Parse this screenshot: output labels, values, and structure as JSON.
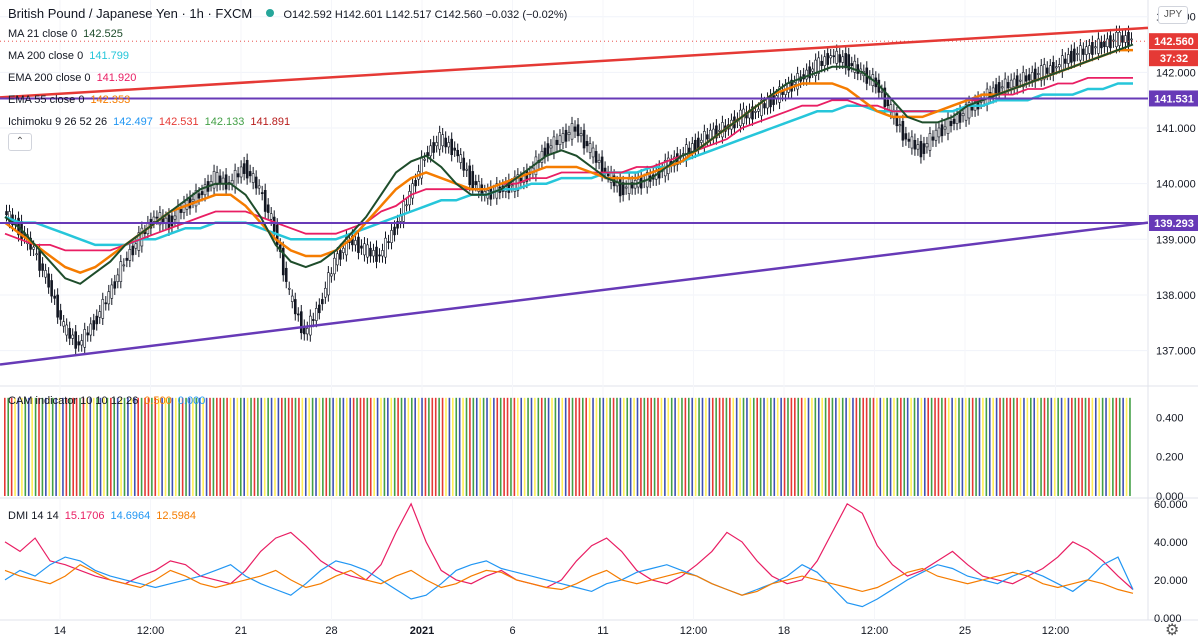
{
  "header": {
    "symbol": "British Pound / Japanese Yen · 1h · FXCM",
    "ohlc": "O142.592  H142.601  L142.517  C142.560  −0.032 (−0.02%)",
    "currency": "JPY"
  },
  "legend_items": [
    {
      "label": "MA 21 close 0",
      "value": "142.525",
      "color": "#1e4d2b"
    },
    {
      "label": "MA 200 close 0",
      "value": "141.799",
      "color": "#26c6da"
    },
    {
      "label": "EMA 200 close 0",
      "value": "141.920",
      "color": "#e91e63"
    },
    {
      "label": "EMA 55 close 0",
      "value": "142.353",
      "color": "#f57c00"
    }
  ],
  "ichimoku": {
    "label": "Ichimoku 9 26 52 26",
    "values": [
      "142.497",
      "142.531",
      "142.133",
      "141.891"
    ],
    "colors": [
      "#2196f3",
      "#e53935",
      "#43a047",
      "#b71c1c"
    ]
  },
  "cam": {
    "label": "CAM indicator 10 10 12 26",
    "values": [
      "0.500",
      "0.000"
    ]
  },
  "dmi": {
    "label": "DMI 14 14",
    "values": [
      "15.1706",
      "14.6964",
      "12.5984"
    ],
    "colors": [
      "#e91e63",
      "#2196f3",
      "#f57c00"
    ]
  },
  "price_badges": {
    "last": "142.560",
    "countdown": "37:32",
    "upper_h": "141.531",
    "lower_h": "139.293"
  },
  "colors": {
    "rsi_red": "#e53935",
    "purple": "#673ab7",
    "ma21": "#1e4d2b",
    "ma200": "#26c6da",
    "ema200": "#e91e63",
    "ema55": "#f57c00",
    "cam_red": "#e53935",
    "cam_blue": "#3f51b5",
    "cam_green": "#43a047",
    "cam_yellow": "#ffee58",
    "dmi_plus": "#e91e63",
    "dmi_minus": "#2196f3",
    "adx": "#f57c00"
  },
  "chart_data": {
    "type": "candlestick",
    "main": {
      "y_ticks": [
        "143.000",
        "142.000",
        "141.000",
        "140.000",
        "139.000",
        "138.000",
        "137.000"
      ],
      "ylim": [
        136.4,
        143.3
      ],
      "x_ticks": [
        "14",
        "12:00",
        "21",
        "28",
        "2021",
        "6",
        "11",
        "12:00",
        "18",
        "12:00",
        "25",
        "12:00"
      ],
      "close_series": [
        139.5,
        139.2,
        138.8,
        138.2,
        137.4,
        137.1,
        137.5,
        138.0,
        138.6,
        139.0,
        139.4,
        139.3,
        139.6,
        139.8,
        140.1,
        140.0,
        140.3,
        139.9,
        139.2,
        138.0,
        137.3,
        137.8,
        138.6,
        139.0,
        138.8,
        138.7,
        139.2,
        139.8,
        140.5,
        140.8,
        140.6,
        140.1,
        139.8,
        139.9,
        140.0,
        140.2,
        140.6,
        140.8,
        141.0,
        140.6,
        140.2,
        139.9,
        140.0,
        140.1,
        140.3,
        140.5,
        140.7,
        140.9,
        141.0,
        141.2,
        141.3,
        141.5,
        141.7,
        141.9,
        142.1,
        142.3,
        142.2,
        142.0,
        141.8,
        141.3,
        140.8,
        140.6,
        140.9,
        141.1,
        141.3,
        141.5,
        141.7,
        141.8,
        141.9,
        142.0,
        142.1,
        142.3,
        142.4,
        142.5,
        142.6,
        142.6
      ],
      "ma21": [
        139.4,
        139.2,
        138.9,
        138.6,
        138.3,
        138.2,
        138.4,
        138.6,
        138.9,
        139.1,
        139.3,
        139.5,
        139.7,
        139.9,
        140.0,
        140.0,
        139.8,
        139.4,
        138.9,
        138.6,
        138.5,
        138.6,
        138.8,
        139.1,
        139.4,
        139.8,
        140.2,
        140.4,
        140.5,
        140.3,
        140.0,
        139.8,
        139.8,
        139.9,
        140.1,
        140.3,
        140.5,
        140.6,
        140.5,
        140.3,
        140.1,
        140.0,
        140.0,
        140.1,
        140.3,
        140.5,
        140.6,
        140.8,
        141.0,
        141.2,
        141.4,
        141.6,
        141.8,
        141.9,
        142.0,
        142.1,
        142.1,
        142.0,
        141.8,
        141.5,
        141.2,
        141.1,
        141.1,
        141.2,
        141.4,
        141.5,
        141.6,
        141.7,
        141.8,
        141.9,
        142.0,
        142.1,
        142.2,
        142.3,
        142.4,
        142.5
      ],
      "ema55": [
        139.3,
        139.1,
        138.9,
        138.7,
        138.5,
        138.4,
        138.5,
        138.7,
        138.9,
        139.1,
        139.3,
        139.5,
        139.6,
        139.7,
        139.8,
        139.8,
        139.6,
        139.3,
        139.0,
        138.8,
        138.7,
        138.7,
        138.8,
        139.0,
        139.3,
        139.6,
        139.9,
        140.1,
        140.2,
        140.1,
        140.0,
        139.9,
        139.9,
        140.0,
        140.1,
        140.2,
        140.3,
        140.3,
        140.3,
        140.2,
        140.1,
        140.1,
        140.1,
        140.2,
        140.3,
        140.4,
        140.6,
        140.8,
        141.0,
        141.2,
        141.4,
        141.6,
        141.7,
        141.8,
        141.8,
        141.8,
        141.7,
        141.5,
        141.3,
        141.2,
        141.2,
        141.2,
        141.3,
        141.4,
        141.5,
        141.6,
        141.6,
        141.7,
        141.8,
        141.9,
        142.0,
        142.1,
        142.2,
        142.3,
        142.4,
        142.4
      ],
      "ema200": [
        139.1,
        139.0,
        138.9,
        138.9,
        138.8,
        138.8,
        138.8,
        138.8,
        138.9,
        139.0,
        139.1,
        139.2,
        139.3,
        139.4,
        139.5,
        139.5,
        139.5,
        139.4,
        139.3,
        139.2,
        139.1,
        139.1,
        139.1,
        139.2,
        139.3,
        139.5,
        139.6,
        139.8,
        139.9,
        139.9,
        139.9,
        139.9,
        139.9,
        140.0,
        140.0,
        140.1,
        140.1,
        140.2,
        140.2,
        140.2,
        140.2,
        140.2,
        140.3,
        140.3,
        140.4,
        140.5,
        140.6,
        140.7,
        140.8,
        141.0,
        141.1,
        141.2,
        141.3,
        141.4,
        141.4,
        141.5,
        141.5,
        141.4,
        141.4,
        141.3,
        141.3,
        141.3,
        141.3,
        141.4,
        141.5,
        141.5,
        141.6,
        141.6,
        141.7,
        141.7,
        141.8,
        141.8,
        141.9,
        141.9,
        141.9,
        141.9
      ],
      "ma200": [
        139.4,
        139.3,
        139.3,
        139.2,
        139.1,
        139.0,
        138.9,
        138.9,
        138.9,
        139.0,
        139.0,
        139.1,
        139.2,
        139.2,
        139.3,
        139.3,
        139.3,
        139.2,
        139.1,
        139.0,
        139.0,
        139.0,
        139.0,
        139.1,
        139.2,
        139.3,
        139.4,
        139.5,
        139.6,
        139.7,
        139.7,
        139.8,
        139.8,
        139.9,
        139.9,
        140.0,
        140.0,
        140.1,
        140.1,
        140.1,
        140.2,
        140.2,
        140.2,
        140.3,
        140.3,
        140.4,
        140.5,
        140.6,
        140.7,
        140.8,
        140.9,
        141.0,
        141.1,
        141.2,
        141.3,
        141.3,
        141.4,
        141.4,
        141.3,
        141.3,
        141.3,
        141.3,
        141.3,
        141.3,
        141.4,
        141.4,
        141.5,
        141.5,
        141.5,
        141.6,
        141.6,
        141.6,
        141.7,
        141.7,
        141.8,
        141.8
      ],
      "trendlines": [
        {
          "name": "upper-red",
          "from": [
            0,
            141.55
          ],
          "to": [
            1,
            142.8
          ]
        },
        {
          "name": "lower-purple",
          "from": [
            0,
            136.75
          ],
          "to": [
            1,
            139.3
          ]
        }
      ],
      "horizontal_lines": [
        141.531,
        139.293
      ]
    },
    "cam": {
      "y_ticks": [
        "0.400",
        "0.200",
        "0.000"
      ],
      "ylim": [
        0,
        0.55
      ]
    },
    "dmi": {
      "y_ticks": [
        "60.000",
        "40.000",
        "20.000",
        "0.000"
      ],
      "ylim": [
        0,
        62
      ],
      "di_plus": [
        40,
        35,
        42,
        30,
        28,
        25,
        22,
        20,
        18,
        22,
        25,
        30,
        28,
        22,
        20,
        18,
        25,
        35,
        42,
        45,
        38,
        30,
        25,
        22,
        20,
        28,
        45,
        60,
        40,
        25,
        20,
        18,
        22,
        25,
        20,
        18,
        16,
        20,
        30,
        38,
        42,
        35,
        25,
        20,
        18,
        22,
        28,
        35,
        45,
        40,
        30,
        22,
        18,
        20,
        30,
        45,
        60,
        55,
        38,
        28,
        22,
        25,
        30,
        35,
        28,
        22,
        20,
        18,
        22,
        26,
        32,
        40,
        36,
        30,
        22,
        15
      ],
      "di_minus": [
        20,
        25,
        22,
        28,
        32,
        30,
        25,
        22,
        20,
        18,
        16,
        18,
        20,
        22,
        25,
        28,
        22,
        18,
        15,
        12,
        18,
        25,
        30,
        28,
        25,
        20,
        15,
        10,
        12,
        18,
        25,
        28,
        30,
        26,
        24,
        22,
        20,
        18,
        16,
        14,
        18,
        20,
        24,
        26,
        28,
        25,
        22,
        18,
        15,
        12,
        15,
        18,
        22,
        28,
        24,
        16,
        8,
        6,
        10,
        15,
        20,
        24,
        28,
        26,
        22,
        20,
        18,
        22,
        25,
        22,
        18,
        14,
        20,
        28,
        32,
        15
      ],
      "adx": [
        25,
        22,
        20,
        18,
        22,
        28,
        24,
        20,
        18,
        16,
        20,
        25,
        22,
        18,
        16,
        18,
        20,
        22,
        25,
        20,
        16,
        18,
        22,
        25,
        20,
        18,
        22,
        25,
        20,
        16,
        18,
        22,
        25,
        24,
        20,
        18,
        16,
        15,
        18,
        22,
        25,
        20,
        18,
        20,
        22,
        24,
        22,
        18,
        15,
        12,
        14,
        18,
        20,
        22,
        20,
        18,
        16,
        14,
        16,
        20,
        24,
        26,
        22,
        20,
        18,
        20,
        22,
        24,
        22,
        18,
        16,
        18,
        20,
        18,
        15,
        13
      ]
    }
  }
}
